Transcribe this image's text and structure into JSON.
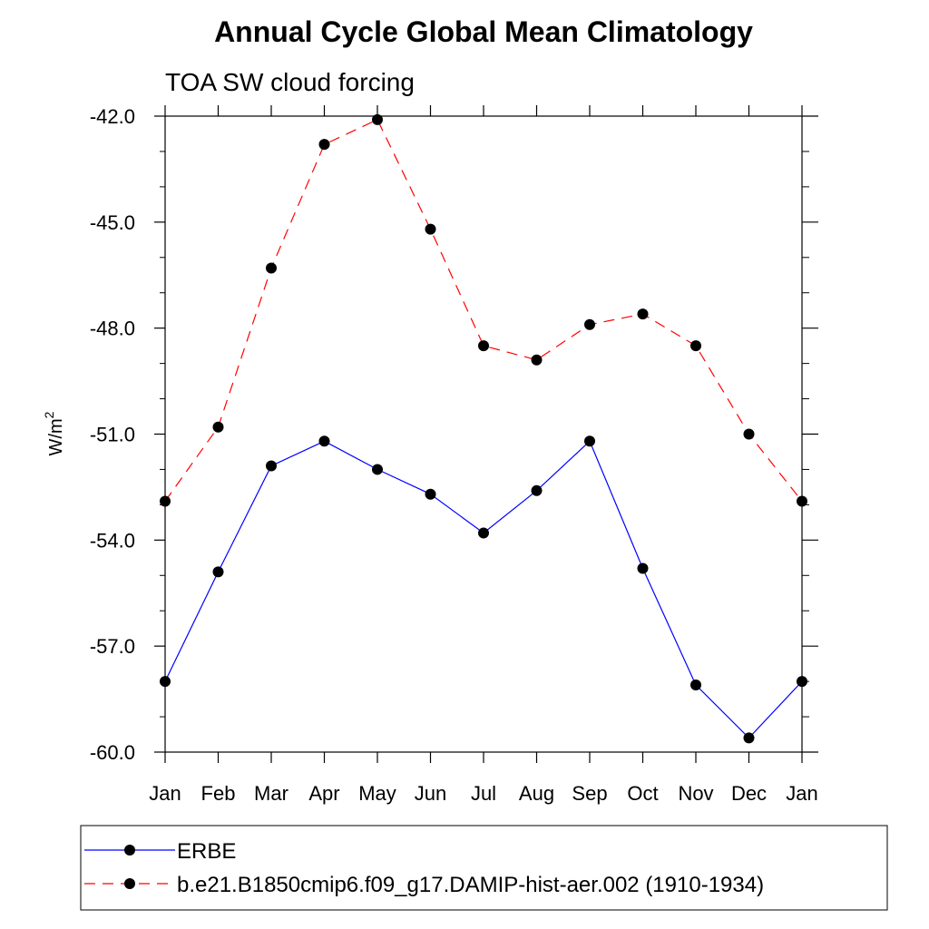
{
  "chart_data": {
    "type": "line",
    "title": "Annual Cycle Global Mean Climatology",
    "subtitle": "TOA SW cloud forcing",
    "xlabel": "",
    "ylabel": "W/m",
    "ylabel_superscript": "2",
    "categories": [
      "Jan",
      "Feb",
      "Mar",
      "Apr",
      "May",
      "Jun",
      "Jul",
      "Aug",
      "Sep",
      "Oct",
      "Nov",
      "Dec",
      "Jan"
    ],
    "ylim": [
      -60.0,
      -42.0
    ],
    "yticks": [
      "-42.0",
      "-45.0",
      "-48.0",
      "-51.0",
      "-54.0",
      "-57.0",
      "-60.0"
    ],
    "ytick_values": [
      -42,
      -45,
      -48,
      -51,
      -54,
      -57,
      -60
    ],
    "grid": false,
    "legend_position": "bottom",
    "series": [
      {
        "name": "ERBE",
        "color": "#0000ff",
        "dash": "solid",
        "marker": "filled-circle",
        "values": [
          -58.0,
          -54.9,
          -51.9,
          -51.2,
          -52.0,
          -52.7,
          -53.8,
          -52.6,
          -51.2,
          -54.8,
          -58.1,
          -59.6,
          -58.0
        ]
      },
      {
        "name": "b.e21.B1850cmip6.f09_g17.DAMIP-hist-aer.002 (1910-1934)",
        "color": "#ff0000",
        "dash": "dashed",
        "marker": "filled-circle",
        "values": [
          -52.9,
          -50.8,
          -46.3,
          -42.8,
          -42.1,
          -45.2,
          -48.5,
          -48.9,
          -47.9,
          -47.6,
          -48.5,
          -51.0,
          -52.9
        ]
      }
    ]
  }
}
